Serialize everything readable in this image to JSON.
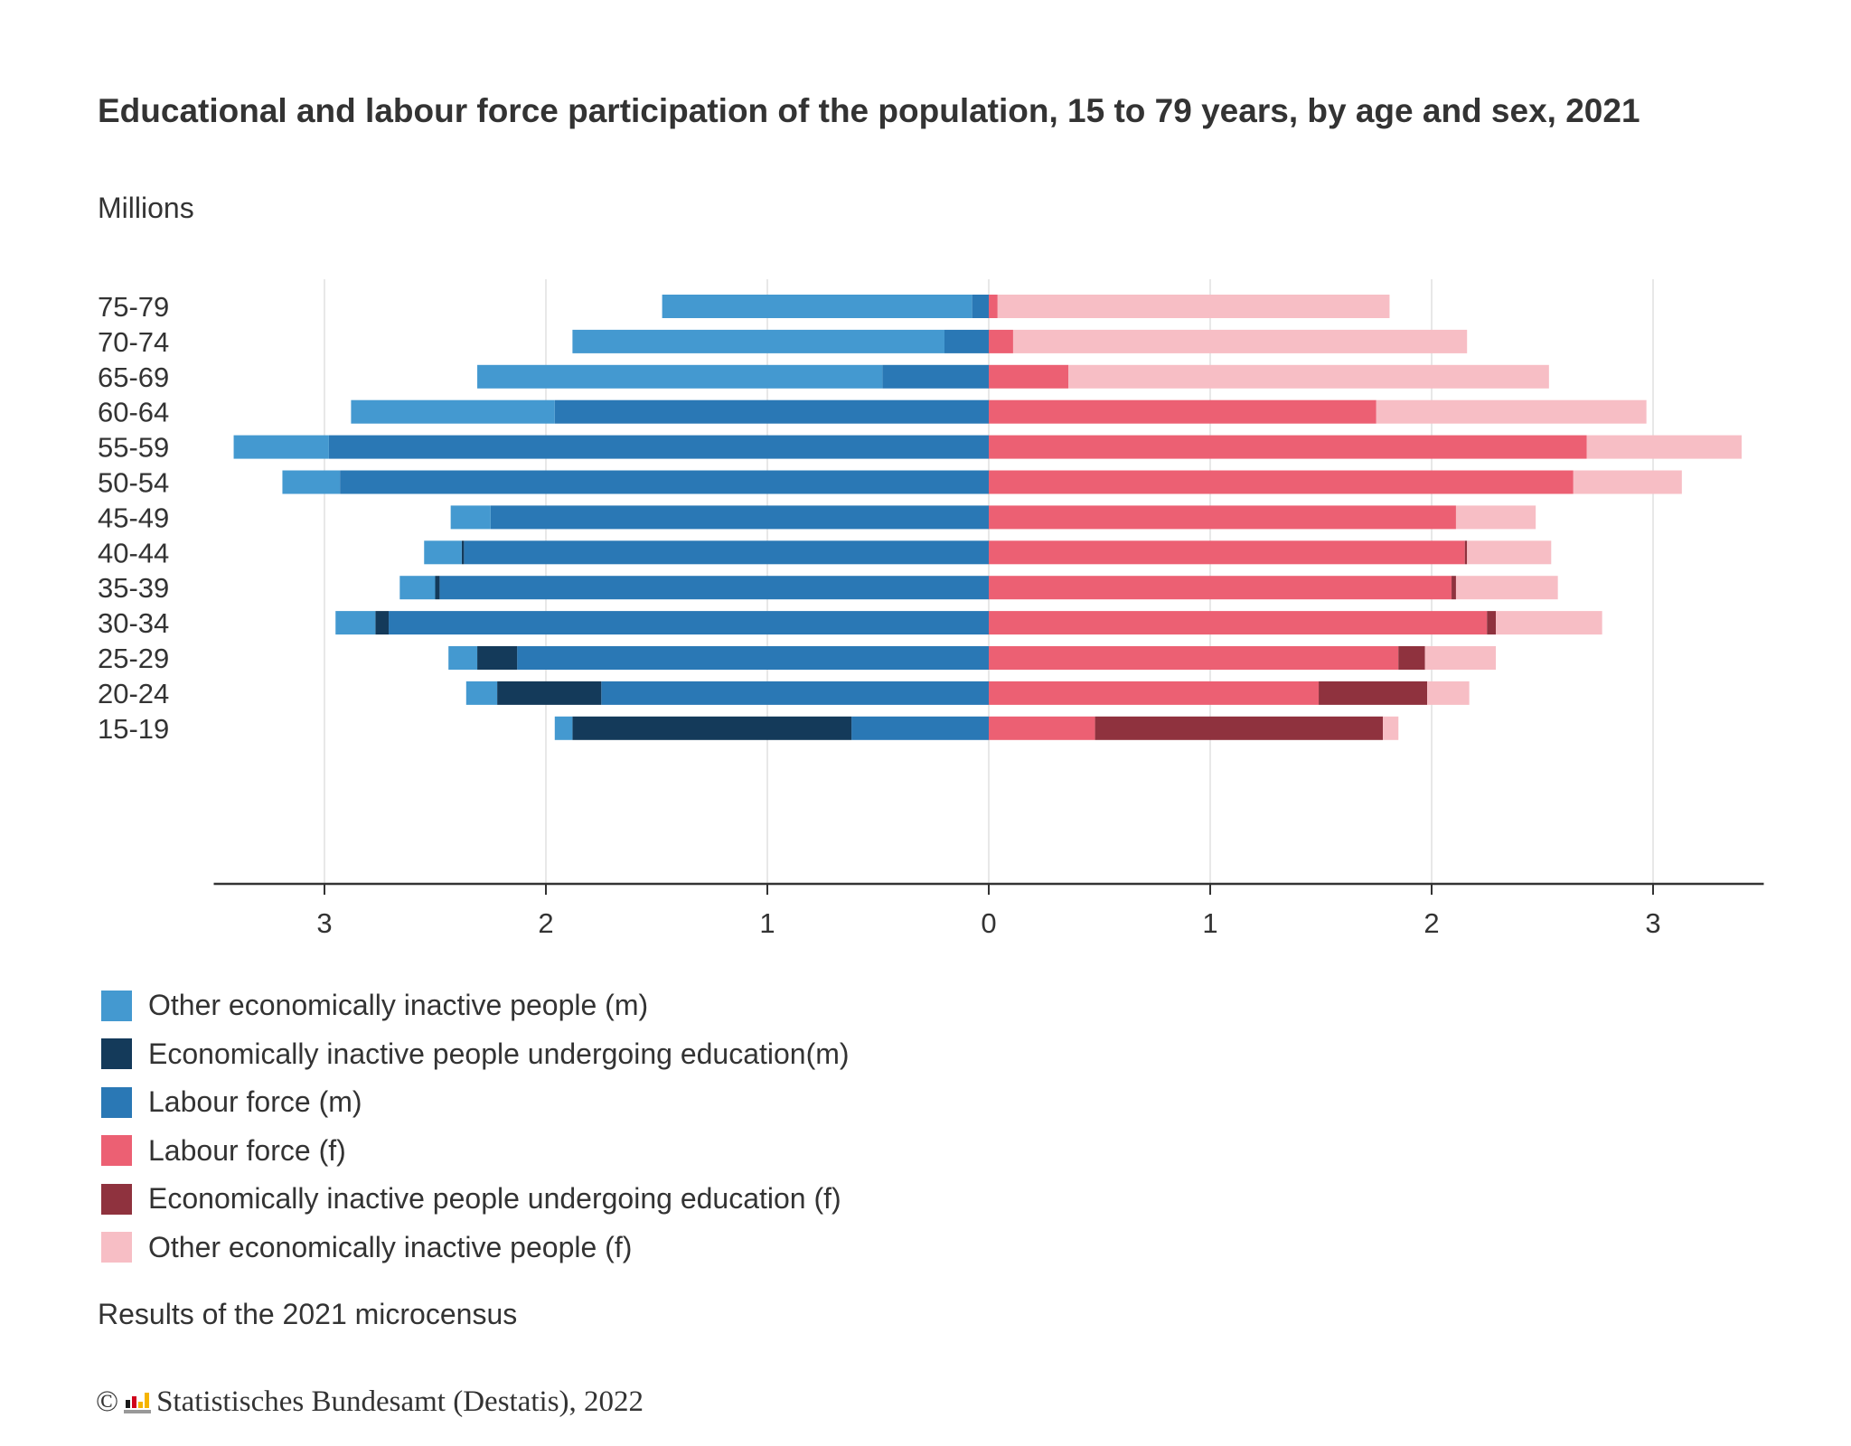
{
  "title": "Educational and labour force participation of the population, 15 to 79 years, by age and sex, 2021",
  "subtitle": "Millions",
  "note": "Results of the 2021 microcensus",
  "credit": {
    "symbol": "©",
    "text": "Statistisches Bundesamt (Destatis), 2022",
    "logo": "Destatis logo"
  },
  "chart_data": {
    "type": "bar",
    "orientation": "horizontal-diverging-stacked",
    "ylabel": "",
    "xlabel": "",
    "xlim": [
      -3.5,
      3.5
    ],
    "xticks": [
      -3,
      -2,
      -1,
      0,
      1,
      2,
      3
    ],
    "xtick_labels": [
      "3",
      "2",
      "1",
      "0",
      "1",
      "2",
      "3"
    ],
    "grid": "vertical",
    "legend_position": "bottom",
    "categories": [
      "75-79",
      "70-74",
      "65-69",
      "60-64",
      "55-59",
      "50-54",
      "45-49",
      "40-44",
      "35-39",
      "30-34",
      "25-29",
      "20-24",
      "15-19"
    ],
    "series": [
      {
        "name": "Other economically inactive people (m)",
        "side": "male",
        "color": "#4499d0",
        "values": [
          1.4,
          1.68,
          1.83,
          0.92,
          0.43,
          0.26,
          0.18,
          0.17,
          0.16,
          0.18,
          0.13,
          0.14,
          0.08
        ]
      },
      {
        "name": "Economically inactive people undergoing education(m)",
        "side": "male",
        "color": "#143a5a",
        "values": [
          0,
          0,
          0,
          0,
          0,
          0,
          0,
          0.01,
          0.02,
          0.06,
          0.18,
          0.47,
          1.26
        ]
      },
      {
        "name": "Labour force (m)",
        "side": "male",
        "color": "#2a78b5",
        "values": [
          0.075,
          0.2,
          0.48,
          1.96,
          2.98,
          2.93,
          2.25,
          2.37,
          2.48,
          2.71,
          2.13,
          1.75,
          0.62
        ]
      },
      {
        "name": "Labour force (f)",
        "side": "female",
        "color": "#ec6073",
        "values": [
          0.04,
          0.11,
          0.36,
          1.75,
          2.7,
          2.64,
          2.11,
          2.15,
          2.09,
          2.25,
          1.85,
          1.49,
          0.48
        ]
      },
      {
        "name": "Economically inactive people undergoing education (f)",
        "side": "female",
        "color": "#8f323e",
        "values": [
          0,
          0,
          0,
          0,
          0,
          0,
          0,
          0.01,
          0.02,
          0.04,
          0.12,
          0.49,
          1.3
        ]
      },
      {
        "name": "Other economically inactive people (f)",
        "side": "female",
        "color": "#f7bec5",
        "values": [
          1.77,
          2.05,
          2.17,
          1.22,
          0.7,
          0.49,
          0.36,
          0.38,
          0.46,
          0.48,
          0.32,
          0.19,
          0.07
        ]
      }
    ]
  }
}
